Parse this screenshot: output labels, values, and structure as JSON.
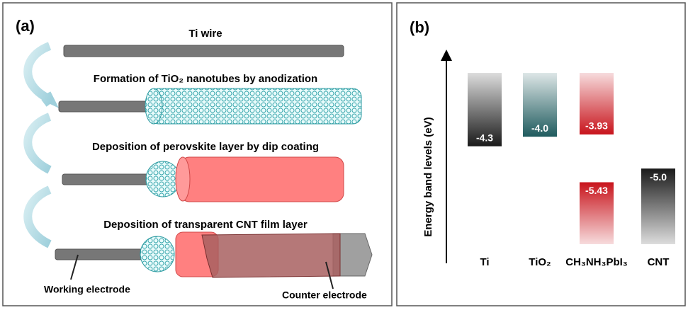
{
  "panel_a": {
    "label": "(a)",
    "steps": [
      "Ti wire",
      "Formation of TiO₂ nanotubes by anodization",
      "Deposition of perovskite layer by dip coating",
      "Deposition of transparent CNT film layer"
    ],
    "working_electrode": "Working electrode",
    "counter_electrode": "Counter electrode"
  },
  "chart_data": {
    "type": "band",
    "panel_label": "(b)",
    "y_label": "Energy band levels (eV)",
    "series": [
      {
        "name": "Ti",
        "color": "#1a1a1a",
        "values": [
          -4.3
        ],
        "value_labels": [
          "-4.3"
        ]
      },
      {
        "name": "TiO₂",
        "color": "#1f5b5e",
        "values": [
          -4.0
        ],
        "value_labels": [
          "-4.0"
        ]
      },
      {
        "name": "CH₃NH₃PbI₃",
        "color": "#c8141c",
        "values": [
          -3.93,
          -5.43
        ],
        "value_labels": [
          "-3.93",
          "-5.43"
        ]
      },
      {
        "name": "CNT",
        "color": "#1a1a1a",
        "values": [
          -5.0
        ],
        "value_labels": [
          "-5.0"
        ]
      }
    ]
  }
}
